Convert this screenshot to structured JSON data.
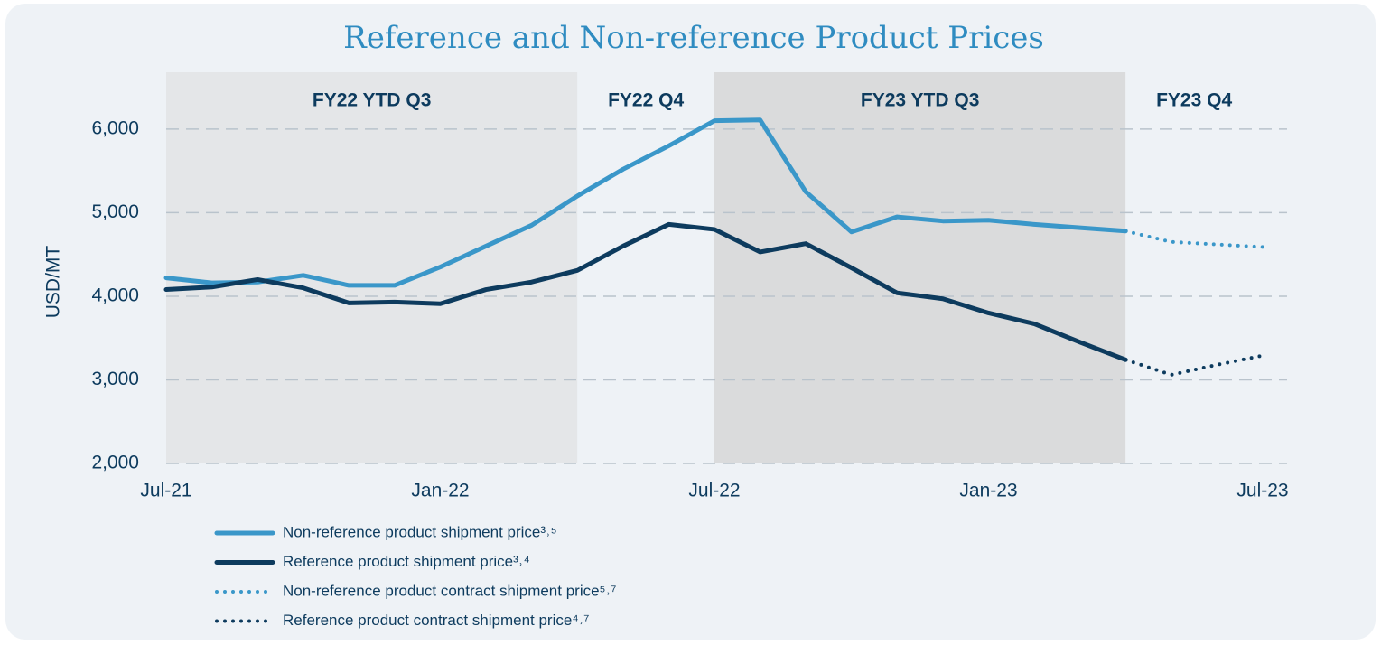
{
  "chart_data": {
    "type": "line",
    "title": "Reference and Non-reference  Product Prices",
    "y_label": "USD/MT",
    "categories": [
      "Jul-21",
      null,
      null,
      null,
      null,
      null,
      "Jan-22",
      null,
      null,
      null,
      null,
      null,
      "Jul-22",
      null,
      null,
      null,
      null,
      null,
      "Jan-23",
      null,
      null,
      null,
      null,
      null,
      "Jul-23"
    ],
    "ylim": [
      2000,
      6680
    ],
    "yticks": [
      {
        "value": 2000,
        "label": "2,000"
      },
      {
        "value": 3000,
        "label": "3,000"
      },
      {
        "value": 4000,
        "label": "4,000"
      },
      {
        "value": 5000,
        "label": "5,000"
      },
      {
        "value": 6000,
        "label": "6,000"
      }
    ],
    "grid": true,
    "bands": [
      {
        "label": "FY22 YTD Q3",
        "from": 0,
        "to": 9,
        "color": "#e4e6e8"
      },
      {
        "label": "FY22 Q4",
        "from": 9,
        "to": 12,
        "color": "#eef2f6"
      },
      {
        "label": "FY23 YTD Q3",
        "from": 12,
        "to": 21,
        "color": "#dadbdc"
      },
      {
        "label": "FY23 Q4",
        "from": 21,
        "to": 24,
        "color": "#eef2f6"
      }
    ],
    "series": [
      {
        "name": "Non-reference product shipment price³˒⁵",
        "color": "#3a97c9",
        "style": "solid",
        "values": [
          4220,
          4160,
          4170,
          4250,
          4130,
          4130,
          4350,
          4600,
          4850,
          5200,
          5520,
          5800,
          6100,
          6110,
          5250,
          4770,
          4950,
          4900,
          4910,
          4860,
          4820,
          4780,
          null,
          null,
          null
        ]
      },
      {
        "name": "Reference product shipment price³˒⁴",
        "color": "#0d3b5e",
        "style": "solid",
        "values": [
          4080,
          4110,
          4200,
          4100,
          3920,
          3930,
          3910,
          4080,
          4170,
          4310,
          4600,
          4860,
          4800,
          4530,
          4630,
          4340,
          4040,
          3970,
          3800,
          3670,
          3450,
          3240,
          null,
          null,
          null
        ]
      },
      {
        "name": "Non-reference product contract shipment price⁵˒⁷",
        "color": "#3a97c9",
        "style": "dotted",
        "values": [
          null,
          null,
          null,
          null,
          null,
          null,
          null,
          null,
          null,
          null,
          null,
          null,
          null,
          null,
          null,
          null,
          null,
          null,
          null,
          null,
          null,
          4780,
          4650,
          4620,
          4590
        ]
      },
      {
        "name": "Reference product contract shipment price⁴˒⁷",
        "color": "#0d3b5e",
        "style": "dotted",
        "values": [
          null,
          null,
          null,
          null,
          null,
          null,
          null,
          null,
          null,
          null,
          null,
          null,
          null,
          null,
          null,
          null,
          null,
          null,
          null,
          null,
          null,
          3240,
          3060,
          3180,
          3290
        ]
      }
    ]
  }
}
